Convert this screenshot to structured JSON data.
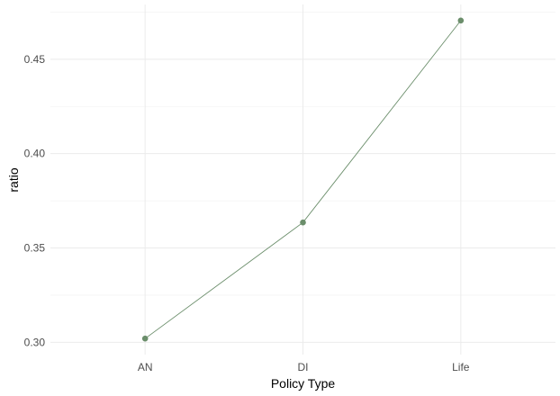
{
  "chart_data": {
    "type": "line",
    "title": "",
    "xlabel": "Policy Type",
    "ylabel": "ratio",
    "categories": [
      "AN",
      "DI",
      "Life"
    ],
    "series": [
      {
        "values": [
          0.302,
          0.3635,
          0.4705
        ],
        "color": "#6b8e6b"
      }
    ],
    "ylim": [
      0.2935,
      0.479
    ],
    "yticks": [
      0.3,
      0.35,
      0.4,
      0.45
    ],
    "ytick_labels": [
      "0.30",
      "0.35",
      "0.40",
      "0.45"
    ],
    "grid": true,
    "legend": "none"
  }
}
